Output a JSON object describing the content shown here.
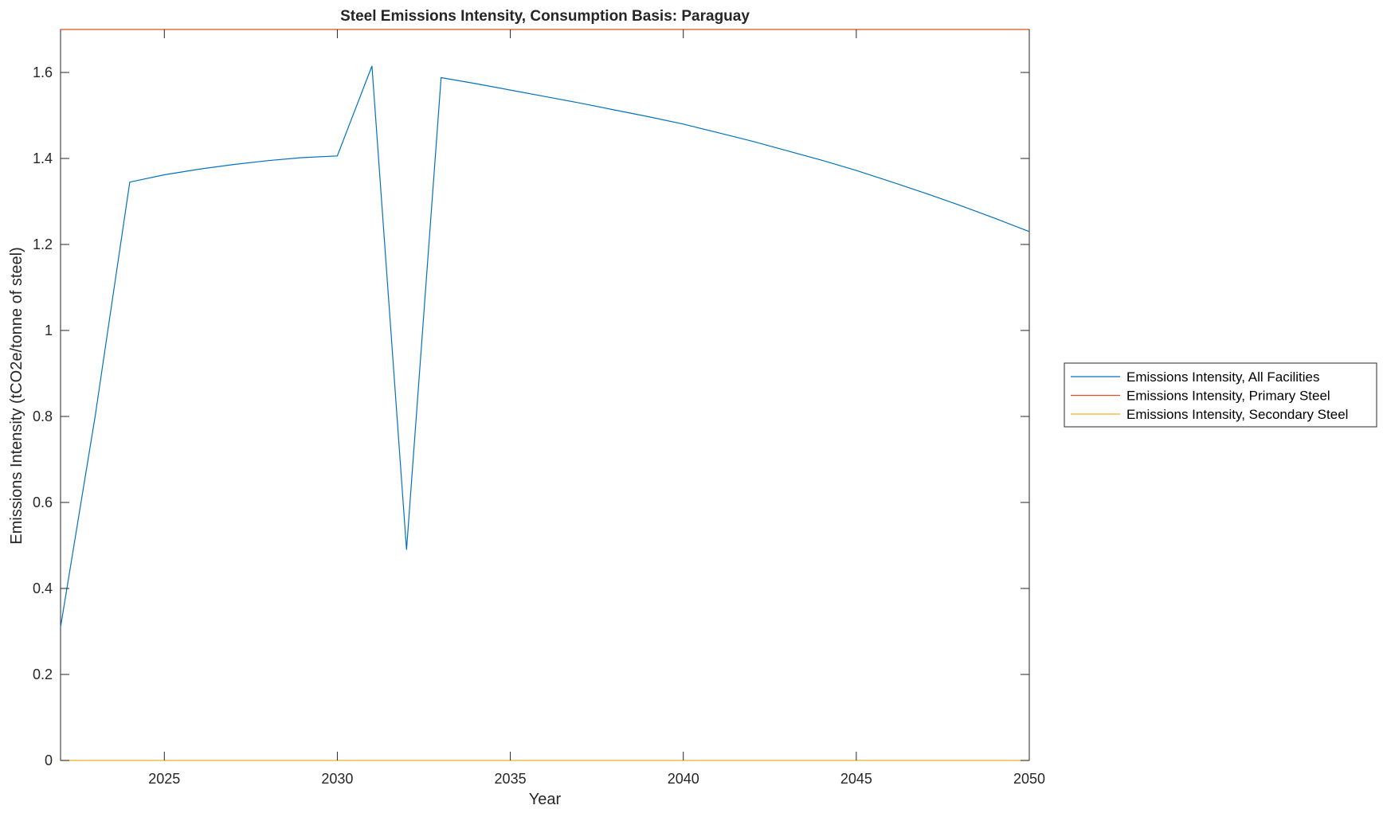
{
  "chart_data": {
    "type": "line",
    "title": "Steel Emissions Intensity, Consumption Basis: Paraguay",
    "xlabel": "Year",
    "ylabel": "Emissions Intensity (tCO2e/tonne of steel)",
    "xlim": [
      2022,
      2050
    ],
    "ylim": [
      0,
      1.7
    ],
    "xticks": [
      2025,
      2030,
      2035,
      2040,
      2045,
      2050
    ],
    "yticks": [
      0,
      0.2,
      0.4,
      0.6,
      0.8,
      1,
      1.2,
      1.4,
      1.6
    ],
    "xtick_labels": [
      "2025",
      "2030",
      "2035",
      "2040",
      "2045",
      "2050"
    ],
    "ytick_labels": [
      "0",
      "0.2",
      "0.4",
      "0.6",
      "0.8",
      "1",
      "1.2",
      "1.4",
      "1.6"
    ],
    "grid": false,
    "legend_position": "outside-right",
    "series": [
      {
        "name": "Emissions Intensity, All Facilities",
        "color": "#0072BD",
        "x": [
          2022,
          2023,
          2024,
          2025,
          2026,
          2027,
          2028,
          2029,
          2030,
          2031,
          2032,
          2033,
          2034,
          2035,
          2036,
          2037,
          2038,
          2039,
          2040,
          2041,
          2042,
          2043,
          2044,
          2045,
          2046,
          2047,
          2048,
          2049,
          2050
        ],
        "y": [
          0.31,
          0.8,
          1.345,
          1.362,
          1.375,
          1.386,
          1.395,
          1.402,
          1.406,
          1.615,
          0.49,
          1.588,
          1.574,
          1.559,
          1.544,
          1.529,
          1.513,
          1.497,
          1.48,
          1.46,
          1.44,
          1.418,
          1.396,
          1.372,
          1.346,
          1.319,
          1.291,
          1.261,
          1.23
        ]
      },
      {
        "name": "Emissions Intensity, Primary Steel",
        "color": "#D95319",
        "x": [
          2022,
          2050
        ],
        "y": [
          1.7,
          1.7
        ]
      },
      {
        "name": "Emissions Intensity, Secondary Steel",
        "color": "#EDB120",
        "x": [
          2022,
          2050
        ],
        "y": [
          0,
          0
        ]
      }
    ]
  }
}
